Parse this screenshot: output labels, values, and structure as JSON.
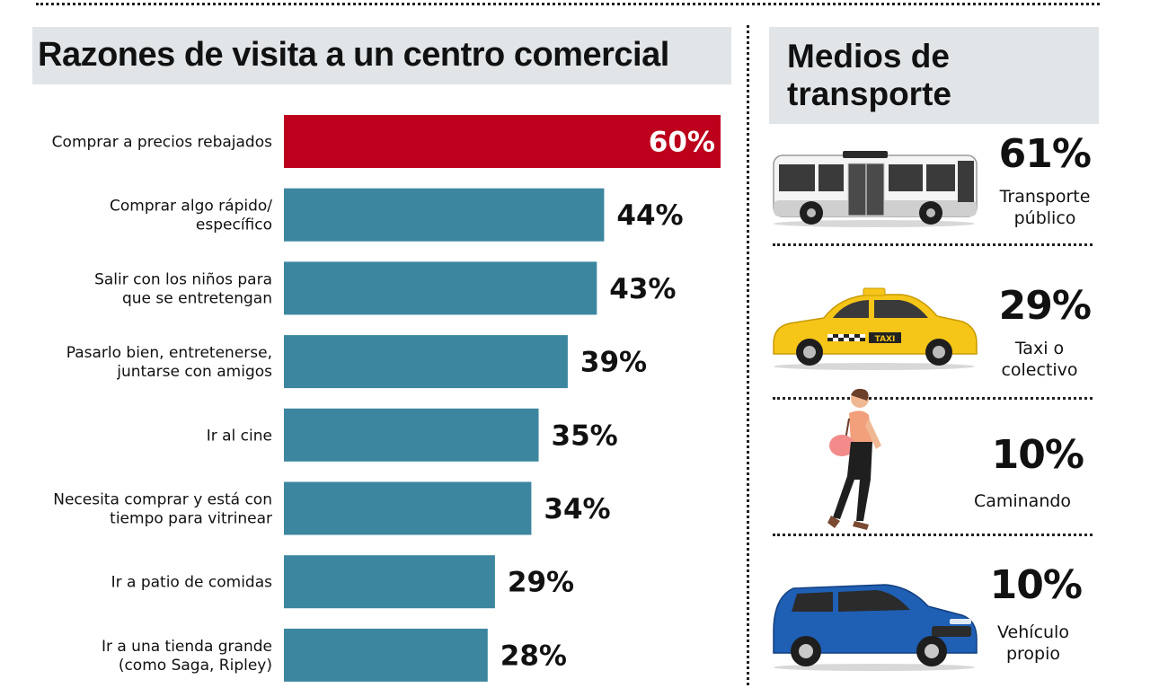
{
  "left_title": "Razones de visita a un centro comercial",
  "right_title": [
    "Medios de",
    "transporte"
  ],
  "colors": {
    "highlight": "#bd001c",
    "bar": "#3c869f",
    "title_bg": "#e1e5e8"
  },
  "chart_data": {
    "type": "bar",
    "orientation": "horizontal",
    "title": "Razones de visita a un centro comercial",
    "xlim": [
      0,
      60
    ],
    "categories": [
      [
        "Comprar a precios rebajados"
      ],
      [
        "Comprar algo rápido/",
        "específico"
      ],
      [
        "Salir con los niños para",
        "que se entretengan"
      ],
      [
        "Pasarlo bien, entretenerse,",
        "juntarse con amigos"
      ],
      [
        "Ir al cine"
      ],
      [
        "Necesita comprar y está con",
        "tiempo para vitrinear"
      ],
      [
        "Ir a patio de comidas"
      ],
      [
        "Ir a una tienda grande",
        "(como Saga, Ripley)"
      ]
    ],
    "values": [
      60,
      44,
      43,
      39,
      35,
      34,
      29,
      28
    ],
    "value_labels": [
      "60%",
      "44%",
      "43%",
      "39%",
      "35%",
      "34%",
      "29%",
      "28%"
    ],
    "highlight_index": 0
  },
  "transport": [
    {
      "percent": "61%",
      "label": [
        "Transporte",
        "público"
      ],
      "icon": "bus-icon"
    },
    {
      "percent": "29%",
      "label": [
        "Taxi o",
        "colectivo"
      ],
      "icon": "taxi-icon"
    },
    {
      "percent": "10%",
      "label": [
        "Caminando"
      ],
      "icon": "walking-woman-icon"
    },
    {
      "percent": "10%",
      "label": [
        "Vehículo",
        "propio"
      ],
      "icon": "suv-icon"
    }
  ]
}
